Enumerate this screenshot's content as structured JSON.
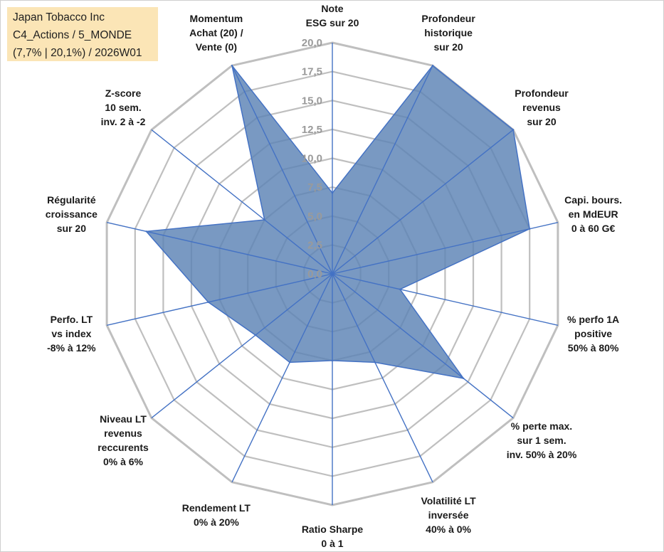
{
  "info": {
    "line1": "Japan Tobacco Inc",
    "line2": "C4_Actions / 5_MONDE",
    "line3": "(7,7% | 20,1%) / 2026W01",
    "background_color": "#fbe5b6"
  },
  "chart_data": {
    "type": "radar",
    "title": "",
    "scale": {
      "min": 0,
      "max": 20,
      "step": 2.5
    },
    "tick_labels": [
      "0,0",
      "2,5",
      "5,0",
      "7,5",
      "10,0",
      "12,5",
      "15,0",
      "17,5",
      "20,0"
    ],
    "axes": [
      {
        "lines": [
          "Note",
          "ESG sur 20"
        ]
      },
      {
        "lines": [
          "Profondeur",
          "historique",
          "sur 20"
        ]
      },
      {
        "lines": [
          "Profondeur",
          "revenus",
          "sur 20"
        ]
      },
      {
        "lines": [
          "Capi. bours.",
          "en MdEUR",
          "0 à 60 G€"
        ]
      },
      {
        "lines": [
          "% perfo 1A",
          "positive",
          "50% à 80%"
        ]
      },
      {
        "lines": [
          "% perte max.",
          "sur 1 sem.",
          "inv. 50% à 20%"
        ]
      },
      {
        "lines": [
          "Volatilité LT",
          "inversée",
          "40% à 0%"
        ]
      },
      {
        "lines": [
          "Ratio Sharpe",
          "0 à 1"
        ]
      },
      {
        "lines": [
          "Rendement LT",
          "0% à 20%"
        ]
      },
      {
        "lines": [
          "Niveau LT",
          "revenus",
          "reccurents",
          "0% à 6%"
        ]
      },
      {
        "lines": [
          "Perfo. LT",
          "vs index",
          "-8% à 12%"
        ]
      },
      {
        "lines": [
          "Régularité",
          "croissance",
          "sur 20"
        ]
      },
      {
        "lines": [
          "Z-score",
          "10 sem.",
          "inv. 2 à -2"
        ]
      },
      {
        "lines": [
          "Momentum",
          "Achat (20) /",
          "Vente (0)"
        ]
      }
    ],
    "series": [
      {
        "name": "Japan Tobacco Inc",
        "values": [
          7.0,
          20.0,
          20.0,
          17.5,
          6.0,
          14.5,
          8.5,
          7.5,
          8.5,
          8.5,
          11.0,
          16.5,
          7.5,
          20.0
        ],
        "fill_color": "#5b82b5",
        "line_color": "#4472c4"
      }
    ],
    "grid_color": "#bfbfbf",
    "spoke_color": "#4472c4"
  }
}
